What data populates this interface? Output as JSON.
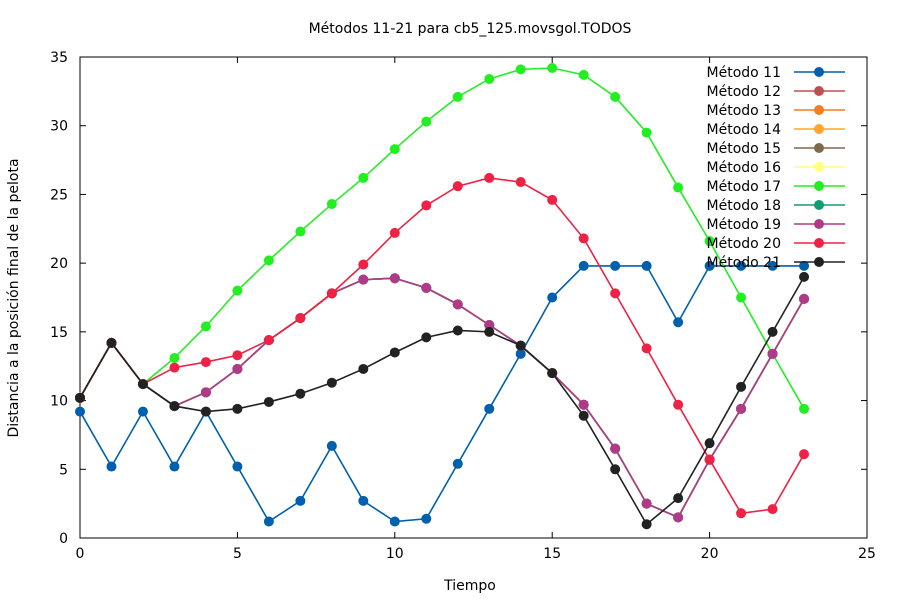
{
  "chart_data": {
    "type": "line",
    "title": "Métodos 11-21 para cb5_125.movsgol.TODOS",
    "xlabel": "Tiempo",
    "ylabel": "Distancia a la posición final de la pelota",
    "xlim": [
      0,
      25
    ],
    "ylim": [
      0,
      35
    ],
    "xticks": [
      0,
      5,
      10,
      15,
      20,
      25
    ],
    "yticks": [
      0,
      5,
      10,
      15,
      20,
      25,
      30,
      35
    ],
    "grid": false,
    "legend_position": "top-right",
    "x": [
      0,
      1,
      2,
      3,
      4,
      5,
      6,
      7,
      8,
      9,
      10,
      11,
      12,
      13,
      14,
      15,
      16,
      17,
      18,
      19,
      20,
      21,
      22,
      23
    ],
    "series": [
      {
        "name": "Método 11",
        "color": "#0060ad",
        "values": [
          9.2,
          5.2,
          9.2,
          5.2,
          9.2,
          5.2,
          1.2,
          2.7,
          6.7,
          2.7,
          1.2,
          1.4,
          5.4,
          9.4,
          13.4,
          17.5,
          19.8,
          19.8,
          19.8,
          15.7,
          19.8,
          19.8,
          19.8,
          19.8
        ]
      },
      {
        "name": "Método 12",
        "color": "#c0504d",
        "values": [
          10.2,
          14.2,
          11.2,
          9.6,
          10.6,
          12.3,
          14.4,
          16.0,
          17.8,
          18.8,
          18.9,
          18.2,
          17.0,
          15.5,
          14.0,
          12.0,
          9.7,
          6.5,
          2.5,
          1.5,
          5.7,
          9.4,
          13.4,
          17.4
        ]
      },
      {
        "name": "Método 13",
        "color": "#f47d23",
        "values": [
          10.2,
          14.2,
          11.2,
          9.6,
          10.6,
          12.3,
          14.4,
          16.0,
          17.8,
          18.8,
          18.9,
          18.2,
          17.0,
          15.5,
          14.0,
          12.0,
          9.7,
          6.5,
          2.5,
          1.5,
          5.7,
          9.4,
          13.4,
          17.4
        ]
      },
      {
        "name": "Método 14",
        "color": "#ffa726",
        "values": [
          10.2,
          14.2,
          11.2,
          9.6,
          10.6,
          12.3,
          14.4,
          16.0,
          17.8,
          18.8,
          18.9,
          18.2,
          17.0,
          15.5,
          14.0,
          12.0,
          9.7,
          6.5,
          2.5,
          1.5,
          5.7,
          9.4,
          13.4,
          17.4
        ]
      },
      {
        "name": "Método 15",
        "color": "#7e6a4f",
        "values": [
          10.2,
          14.2,
          11.2,
          9.6,
          10.6,
          12.3,
          14.4,
          16.0,
          17.8,
          18.8,
          18.9,
          18.2,
          17.0,
          15.5,
          14.0,
          12.0,
          9.7,
          6.5,
          2.5,
          1.5,
          5.7,
          9.4,
          13.4,
          17.4
        ]
      },
      {
        "name": "Método 16",
        "color": "#ffff80",
        "values": [
          10.2,
          14.2,
          11.2,
          9.6,
          10.6,
          12.3,
          14.4,
          16.0,
          17.8,
          18.8,
          18.9,
          18.2,
          17.0,
          15.5,
          14.0,
          12.0,
          9.7,
          6.5,
          2.5,
          1.5,
          5.7,
          9.4,
          13.4,
          17.4
        ]
      },
      {
        "name": "Método 17",
        "color": "#22ee22",
        "values": [
          10.2,
          14.2,
          11.2,
          13.1,
          15.4,
          18.0,
          20.2,
          22.3,
          24.3,
          26.2,
          28.3,
          30.3,
          32.1,
          33.4,
          34.1,
          34.2,
          33.7,
          32.1,
          29.5,
          25.5,
          21.6,
          17.5,
          13.4,
          9.4
        ]
      },
      {
        "name": "Método 18",
        "color": "#109d6f",
        "values": [
          10.2,
          14.2,
          11.2,
          9.6,
          10.6,
          12.3,
          14.4,
          16.0,
          17.8,
          18.8,
          18.9,
          18.2,
          17.0,
          15.5,
          14.0,
          12.0,
          9.7,
          6.5,
          2.5,
          1.5,
          5.7,
          9.4,
          13.4,
          17.4
        ]
      },
      {
        "name": "Método 19",
        "color": "#b03a8a",
        "values": [
          10.2,
          14.2,
          11.2,
          9.6,
          10.6,
          12.3,
          14.4,
          16.0,
          17.8,
          18.8,
          18.9,
          18.2,
          17.0,
          15.5,
          14.0,
          12.0,
          9.7,
          6.5,
          2.5,
          1.5,
          5.7,
          9.4,
          13.4,
          17.4
        ]
      },
      {
        "name": "Método 20",
        "color": "#ee2244",
        "values": [
          10.2,
          14.2,
          11.2,
          12.4,
          12.8,
          13.3,
          14.4,
          16.0,
          17.8,
          19.9,
          22.2,
          24.2,
          25.6,
          26.2,
          25.9,
          24.6,
          21.8,
          17.8,
          13.8,
          9.7,
          5.7,
          1.8,
          2.1,
          6.1
        ]
      },
      {
        "name": "Método 21",
        "color": "#222222",
        "values": [
          10.2,
          14.2,
          11.2,
          9.6,
          9.2,
          9.4,
          9.9,
          10.5,
          11.3,
          12.3,
          13.5,
          14.6,
          15.1,
          15.0,
          14.0,
          12.0,
          8.9,
          5.0,
          1.0,
          2.9,
          6.9,
          11.0,
          15.0,
          19.0
        ]
      }
    ]
  }
}
